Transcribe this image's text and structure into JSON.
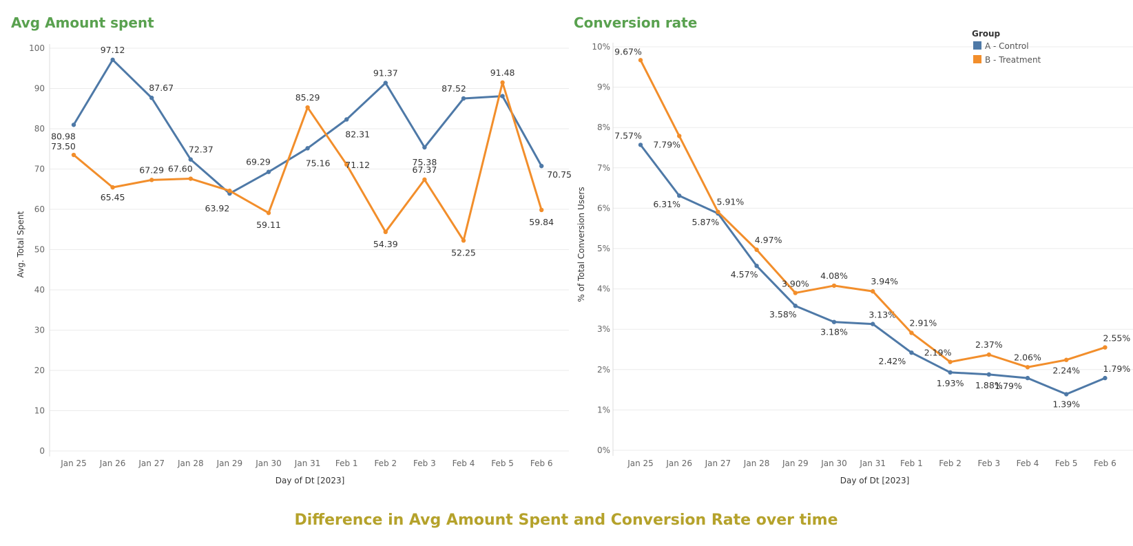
{
  "main_title": "Difference in Avg Amount Spent and Conversion Rate over time",
  "colors": {
    "control": "#4e79a7",
    "treatment": "#f28e2b",
    "chart_title": "#59a14f",
    "main_title": "#b5a22b"
  },
  "legend": {
    "title": "Group",
    "items": [
      "A - Control",
      "B - Treatment"
    ],
    "placement": "top-right"
  },
  "chart_data": [
    {
      "type": "line",
      "title": "Avg Amount spent",
      "xlabel": "Day of Dt [2023]",
      "ylabel": "Avg. Total Spent",
      "categories": [
        "Jan 25",
        "Jan 26",
        "Jan 27",
        "Jan 28",
        "Jan 29",
        "Jan 30",
        "Jan 31",
        "Feb 1",
        "Feb 2",
        "Feb 3",
        "Feb 4",
        "Feb 5",
        "Feb 6"
      ],
      "ylim": [
        0,
        100
      ],
      "yticks": [
        "0",
        "10",
        "20",
        "30",
        "40",
        "50",
        "60",
        "70",
        "80",
        "90",
        "100"
      ],
      "grid": true,
      "series": [
        {
          "name": "A - Control",
          "values": [
            80.98,
            97.12,
            87.67,
            72.37,
            63.92,
            69.29,
            75.16,
            82.31,
            91.37,
            75.38,
            87.52,
            88.1,
            70.75
          ],
          "labels": [
            "80.98",
            "97.12",
            "87.67",
            "72.37",
            "63.92",
            "69.29",
            "75.16",
            "82.31",
            "91.37",
            "75.38",
            "87.52",
            "",
            "70.75"
          ]
        },
        {
          "name": "B - Treatment",
          "values": [
            73.5,
            65.45,
            67.29,
            67.6,
            64.6,
            59.11,
            85.29,
            71.12,
            54.39,
            67.37,
            52.25,
            91.48,
            59.84
          ],
          "labels": [
            "73.50",
            "65.45",
            "67.29",
            "67.60",
            "",
            "59.11",
            "85.29",
            "71.12",
            "54.39",
            "67.37",
            "52.25",
            "91.48",
            "59.84"
          ]
        }
      ]
    },
    {
      "type": "line",
      "title": "Conversion rate",
      "xlabel": "Day of Dt [2023]",
      "ylabel": "% of Total Conversion Users",
      "categories": [
        "Jan 25",
        "Jan 26",
        "Jan 27",
        "Jan 28",
        "Jan 29",
        "Jan 30",
        "Jan 31",
        "Feb 1",
        "Feb 2",
        "Feb 3",
        "Feb 4",
        "Feb 5",
        "Feb 6"
      ],
      "ylim": [
        0,
        10
      ],
      "yticks": [
        "0%",
        "1%",
        "2%",
        "3%",
        "4%",
        "5%",
        "6%",
        "7%",
        "8%",
        "9%",
        "10%"
      ],
      "grid": true,
      "series": [
        {
          "name": "A - Control",
          "values": [
            7.57,
            6.31,
            5.87,
            4.57,
            3.58,
            3.18,
            3.13,
            2.42,
            1.93,
            1.88,
            1.79,
            1.39,
            1.79
          ],
          "labels": [
            "7.57%",
            "6.31%",
            "5.87%",
            "4.57%",
            "3.58%",
            "3.18%",
            "3.13%",
            "2.42%",
            "1.93%",
            "1.88%",
            "1.79%",
            "1.39%",
            "1.79%"
          ]
        },
        {
          "name": "B - Treatment",
          "values": [
            9.67,
            7.79,
            5.91,
            4.97,
            3.9,
            4.08,
            3.94,
            2.91,
            2.19,
            2.37,
            2.06,
            2.24,
            2.55
          ],
          "labels": [
            "9.67%",
            "7.79%",
            "5.91%",
            "4.97%",
            "3.90%",
            "4.08%",
            "3.94%",
            "2.91%",
            "2.19%",
            "2.37%",
            "2.06%",
            "2.24%",
            "2.55%"
          ]
        }
      ]
    }
  ]
}
